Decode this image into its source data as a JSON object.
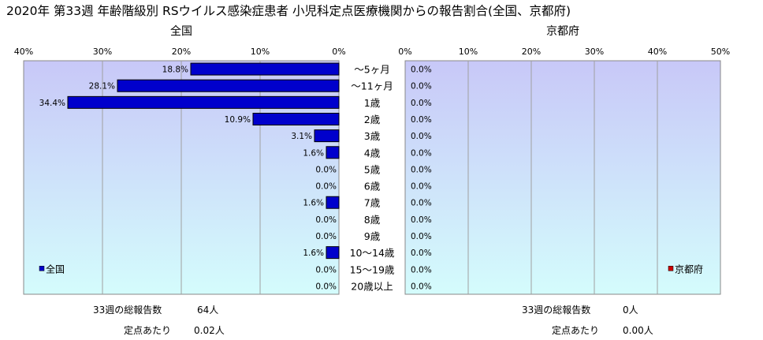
{
  "title": "2020年 第33週 年齢階級別 RSウイルス感染症患者 小児科定点医療機関からの報告割合(全国、京都府)",
  "colors": {
    "national_bar": "#0000cc",
    "kyoto_bar": "#cc0000",
    "bg_top": "#c8c8f8",
    "bg_bottom": "#d4fcfc"
  },
  "chart_data": [
    {
      "type": "bar",
      "orientation": "horizontal",
      "direction": "right-to-left",
      "title": "全国",
      "categories": [
        "〜5ヶ月",
        "〜11ヶ月",
        "1歳",
        "2歳",
        "3歳",
        "4歳",
        "5歳",
        "6歳",
        "7歳",
        "8歳",
        "9歳",
        "10〜14歳",
        "15〜19歳",
        "20歳以上"
      ],
      "series": [
        {
          "name": "全国",
          "values": [
            18.8,
            28.1,
            34.4,
            10.9,
            3.1,
            1.6,
            0.0,
            0.0,
            1.6,
            0.0,
            0.0,
            1.6,
            0.0,
            0.0
          ],
          "labels": [
            "18.8%",
            "28.1%",
            "34.4%",
            "10.9%",
            "3.1%",
            "1.6%",
            "0.0%",
            "0.0%",
            "1.6%",
            "0.0%",
            "0.0%",
            "1.6%",
            "0.0%",
            "0.0%"
          ]
        }
      ],
      "xlim": [
        0,
        40
      ],
      "ticks": [
        "40%",
        "30%",
        "20%",
        "10%",
        "0%"
      ],
      "grid": true,
      "legend_position": "bottom-left"
    },
    {
      "type": "bar",
      "orientation": "horizontal",
      "direction": "left-to-right",
      "title": "京都府",
      "categories": [
        "〜5ヶ月",
        "〜11ヶ月",
        "1歳",
        "2歳",
        "3歳",
        "4歳",
        "5歳",
        "6歳",
        "7歳",
        "8歳",
        "9歳",
        "10〜14歳",
        "15〜19歳",
        "20歳以上"
      ],
      "series": [
        {
          "name": "京都府",
          "values": [
            0.0,
            0.0,
            0.0,
            0.0,
            0.0,
            0.0,
            0.0,
            0.0,
            0.0,
            0.0,
            0.0,
            0.0,
            0.0,
            0.0
          ],
          "labels": [
            "0.0%",
            "0.0%",
            "0.0%",
            "0.0%",
            "0.0%",
            "0.0%",
            "0.0%",
            "0.0%",
            "0.0%",
            "0.0%",
            "0.0%",
            "0.0%",
            "0.0%",
            "0.0%"
          ]
        }
      ],
      "xlim": [
        0,
        50
      ],
      "ticks": [
        "0%",
        "10%",
        "20%",
        "30%",
        "40%",
        "50%"
      ],
      "grid": true,
      "legend_position": "bottom-right"
    }
  ],
  "footer": {
    "national": {
      "reports_label": "33週の総報告数",
      "reports_value": "64人",
      "per_site_label": "定点あたり",
      "per_site_value": "0.02人"
    },
    "kyoto": {
      "reports_label": "33週の総報告数",
      "reports_value": "0人",
      "per_site_label": "定点あたり",
      "per_site_value": "0.00人"
    }
  }
}
